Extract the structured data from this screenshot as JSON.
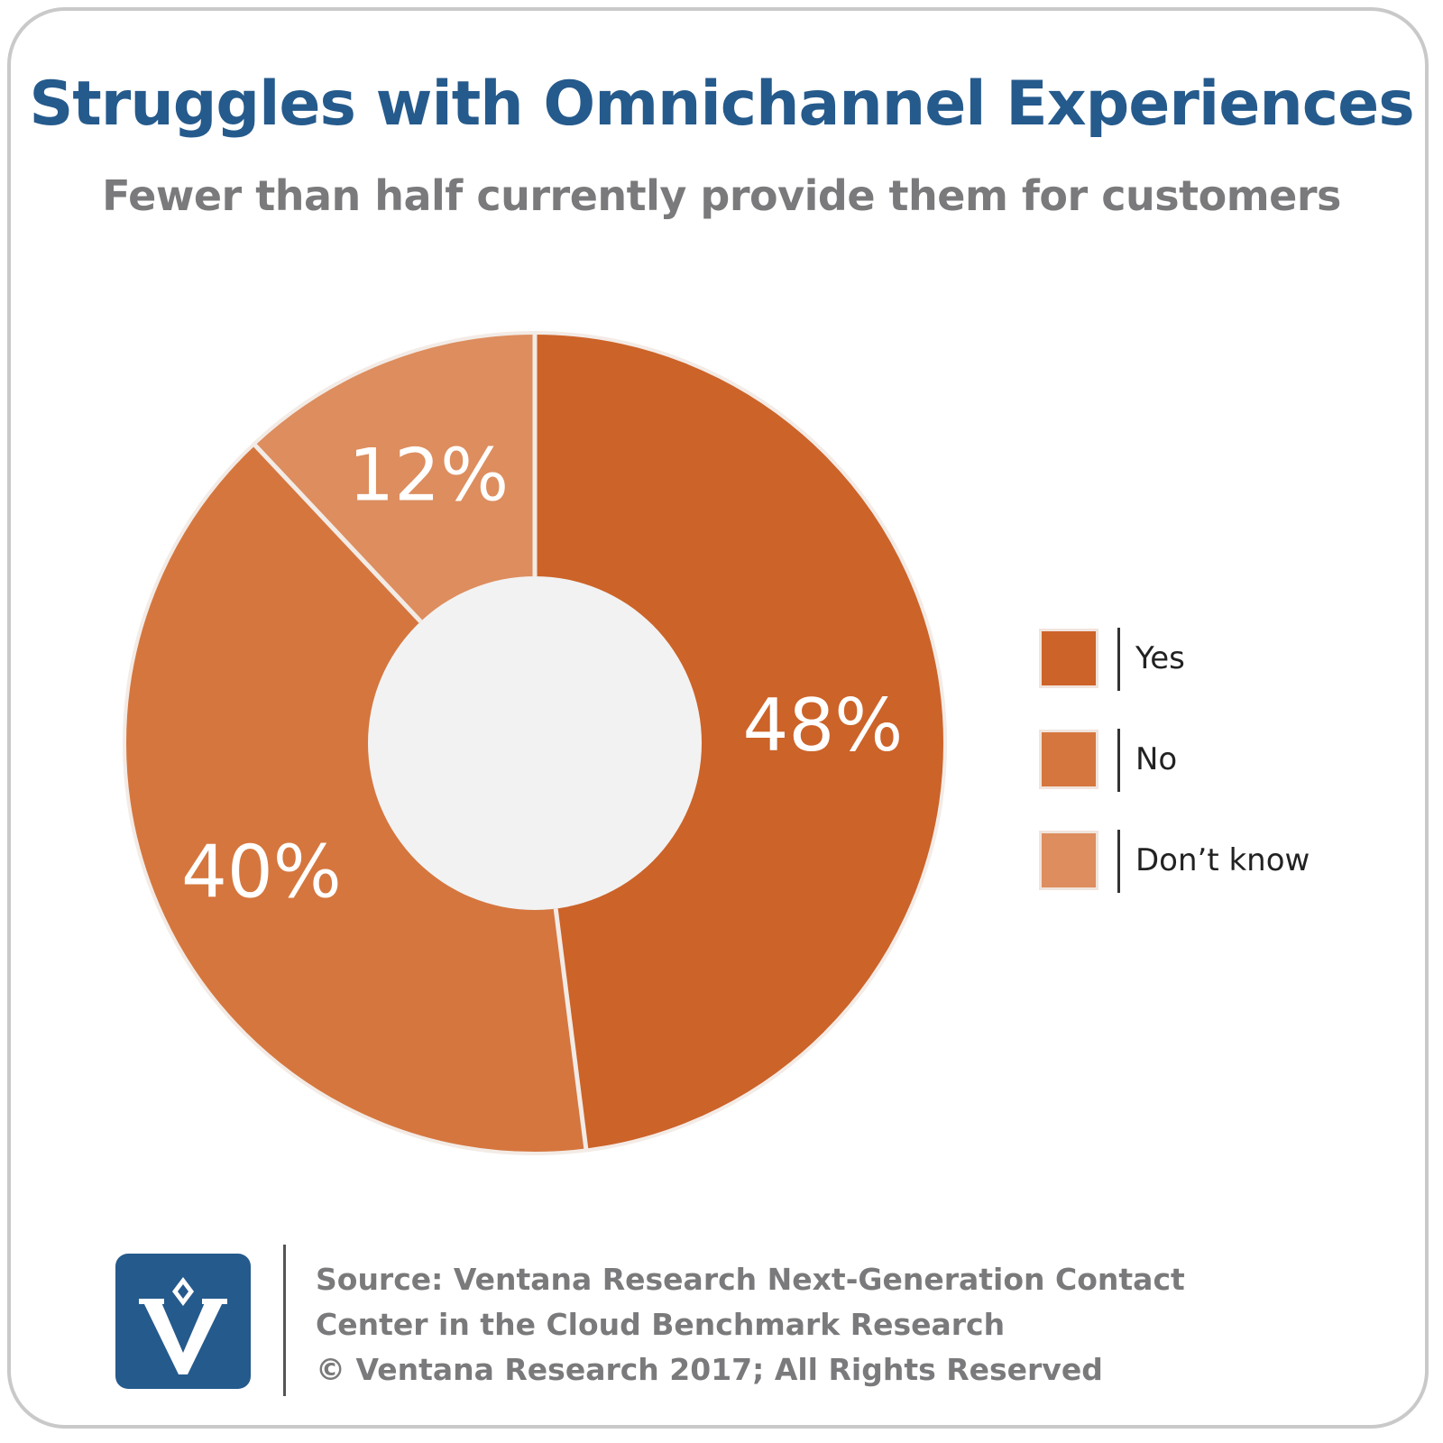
{
  "title": "Struggles with Omnichannel Experiences",
  "subtitle": "Fewer than half currently provide them for customers",
  "colors": {
    "yes": "#cc6329",
    "no": "#d5763e",
    "dont_know": "#dd8d5e",
    "hole": "#f2f2f2",
    "separator": "#f3ebe6",
    "title": "#255a8c",
    "subtitle": "#7a7a7c"
  },
  "chart_data": {
    "type": "pie",
    "donut": true,
    "categories": [
      "Yes",
      "No",
      "Don’t know"
    ],
    "values": [
      48,
      40,
      12
    ],
    "labels": [
      "48%",
      "40%",
      "12%"
    ],
    "legend_position": "right"
  },
  "legend": [
    {
      "label": "Yes"
    },
    {
      "label": "No"
    },
    {
      "label": "Don’t know"
    }
  ],
  "footer": {
    "line1": "Source: Ventana Research Next-Generation Contact",
    "line2": "Center in the Cloud Benchmark Research",
    "line3": "© Ventana Research 2017; All Rights Reserved"
  },
  "logo": {
    "icon": "ventana-logo-icon"
  }
}
